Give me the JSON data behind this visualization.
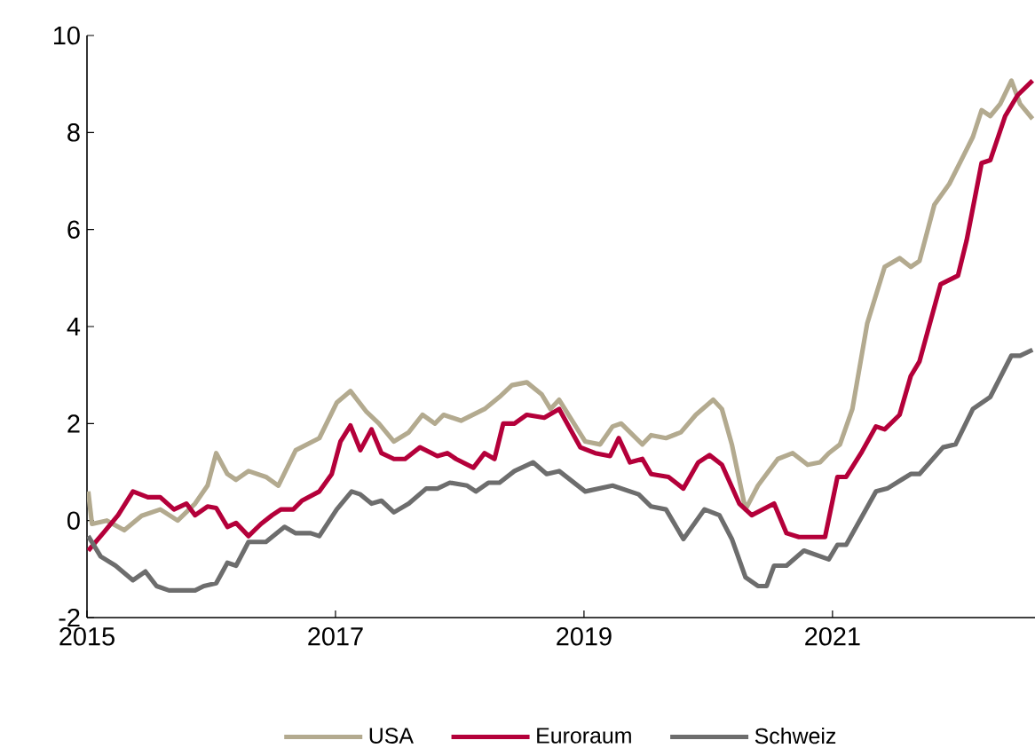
{
  "chart_data": {
    "type": "line",
    "xlim": [
      2015,
      2022.63
    ],
    "xticks": [
      2015,
      2017,
      2019,
      2021
    ],
    "ylim": [
      -2,
      10
    ],
    "yticks": [
      -2,
      0,
      2,
      4,
      6,
      8,
      10
    ],
    "grid": false,
    "legend": "bottom",
    "line_style": "solid",
    "series": [
      {
        "name": "USA",
        "color": "#b3aa8f",
        "x": [
          2015.01,
          2015.04,
          2015.16,
          2015.3,
          2015.44,
          2015.59,
          2015.73,
          2015.87,
          2015.97,
          2016.04,
          2016.13,
          2016.2,
          2016.3,
          2016.44,
          2016.54,
          2016.68,
          2016.87,
          2017.01,
          2017.12,
          2017.25,
          2017.35,
          2017.47,
          2017.59,
          2017.7,
          2017.8,
          2017.87,
          2018.01,
          2018.2,
          2018.32,
          2018.42,
          2018.54,
          2018.66,
          2018.73,
          2018.8,
          2019.01,
          2019.13,
          2019.23,
          2019.3,
          2019.47,
          2019.54,
          2019.66,
          2019.78,
          2019.9,
          2020.04,
          2020.11,
          2020.19,
          2020.3,
          2020.4,
          2020.56,
          2020.68,
          2020.8,
          2020.9,
          2020.97,
          2021.06,
          2021.16,
          2021.28,
          2021.42,
          2021.54,
          2021.63,
          2021.7,
          2021.82,
          2021.94,
          2022.06,
          2022.13,
          2022.2,
          2022.27,
          2022.35,
          2022.44,
          2022.51,
          2022.61
        ],
        "values": [
          0.6,
          -0.07,
          0,
          -0.2,
          0.1,
          0.23,
          0,
          0.35,
          0.72,
          1.39,
          0.96,
          0.84,
          1.02,
          0.9,
          0.72,
          1.45,
          1.7,
          2.43,
          2.67,
          2.24,
          2.0,
          1.63,
          1.82,
          2.18,
          2.0,
          2.18,
          2.06,
          2.3,
          2.55,
          2.79,
          2.85,
          2.6,
          2.3,
          2.49,
          1.63,
          1.57,
          1.94,
          2.0,
          1.57,
          1.76,
          1.7,
          1.82,
          2.18,
          2.49,
          2.3,
          1.57,
          0.23,
          0.72,
          1.27,
          1.39,
          1.15,
          1.2,
          1.39,
          1.57,
          2.3,
          4.07,
          5.23,
          5.41,
          5.23,
          5.35,
          6.51,
          6.94,
          7.55,
          7.91,
          8.46,
          8.34,
          8.59,
          9.07,
          8.59,
          8.28
        ]
      },
      {
        "name": "Euroraum",
        "color": "#b4003a",
        "x": [
          2015.01,
          2015.13,
          2015.25,
          2015.37,
          2015.49,
          2015.59,
          2015.7,
          2015.8,
          2015.87,
          2015.97,
          2016.04,
          2016.13,
          2016.2,
          2016.3,
          2016.4,
          2016.49,
          2016.56,
          2016.66,
          2016.73,
          2016.87,
          2016.97,
          2017.04,
          2017.12,
          2017.2,
          2017.29,
          2017.37,
          2017.47,
          2017.56,
          2017.68,
          2017.82,
          2017.9,
          2017.97,
          2018.11,
          2018.2,
          2018.28,
          2018.35,
          2018.44,
          2018.54,
          2018.68,
          2018.8,
          2018.97,
          2019.09,
          2019.21,
          2019.28,
          2019.37,
          2019.47,
          2019.54,
          2019.68,
          2019.8,
          2019.92,
          2020.01,
          2020.11,
          2020.25,
          2020.35,
          2020.53,
          2020.63,
          2020.73,
          2020.94,
          2021.04,
          2021.11,
          2021.23,
          2021.35,
          2021.42,
          2021.54,
          2021.63,
          2021.7,
          2021.87,
          2022.01,
          2022.08,
          2022.2,
          2022.27,
          2022.39,
          2022.49,
          2022.61
        ],
        "values": [
          -0.62,
          -0.26,
          0.11,
          0.6,
          0.48,
          0.48,
          0.23,
          0.35,
          0.11,
          0.29,
          0.26,
          -0.13,
          -0.05,
          -0.32,
          -0.07,
          0.11,
          0.23,
          0.23,
          0.41,
          0.6,
          0.96,
          1.63,
          1.96,
          1.45,
          1.88,
          1.39,
          1.27,
          1.27,
          1.51,
          1.33,
          1.39,
          1.27,
          1.09,
          1.39,
          1.27,
          2.0,
          2.0,
          2.18,
          2.12,
          2.3,
          1.51,
          1.39,
          1.33,
          1.7,
          1.2,
          1.27,
          0.96,
          0.9,
          0.66,
          1.2,
          1.35,
          1.15,
          0.35,
          0.11,
          0.35,
          -0.26,
          -0.34,
          -0.34,
          0.9,
          0.9,
          1.39,
          1.94,
          1.88,
          2.18,
          2.98,
          3.28,
          4.87,
          5.05,
          5.78,
          7.37,
          7.43,
          8.34,
          8.77,
          9.07
        ]
      },
      {
        "name": "Schweiz",
        "color": "#6d6d6d",
        "x": [
          2015.01,
          2015.11,
          2015.23,
          2015.37,
          2015.47,
          2015.56,
          2015.66,
          2015.87,
          2015.94,
          2016.04,
          2016.13,
          2016.2,
          2016.3,
          2016.44,
          2016.59,
          2016.68,
          2016.8,
          2016.87,
          2017.01,
          2017.13,
          2017.2,
          2017.29,
          2017.37,
          2017.47,
          2017.59,
          2017.73,
          2017.82,
          2017.92,
          2018.06,
          2018.13,
          2018.23,
          2018.32,
          2018.44,
          2018.59,
          2018.7,
          2018.8,
          2019.01,
          2019.23,
          2019.44,
          2019.54,
          2019.66,
          2019.8,
          2019.97,
          2020.09,
          2020.19,
          2020.3,
          2020.4,
          2020.47,
          2020.53,
          2020.63,
          2020.77,
          2020.97,
          2021.04,
          2021.11,
          2021.35,
          2021.44,
          2021.63,
          2021.7,
          2021.89,
          2021.99,
          2022.13,
          2022.27,
          2022.44,
          2022.51,
          2022.61
        ],
        "values": [
          -0.32,
          -0.74,
          -0.93,
          -1.23,
          -1.05,
          -1.35,
          -1.44,
          -1.44,
          -1.35,
          -1.29,
          -0.87,
          -0.93,
          -0.44,
          -0.44,
          -0.13,
          -0.26,
          -0.26,
          -0.32,
          0.23,
          0.6,
          0.54,
          0.35,
          0.41,
          0.17,
          0.35,
          0.66,
          0.66,
          0.78,
          0.72,
          0.6,
          0.78,
          0.78,
          1.02,
          1.2,
          0.96,
          1.02,
          0.6,
          0.72,
          0.54,
          0.29,
          0.23,
          -0.38,
          0.23,
          0.11,
          -0.38,
          -1.17,
          -1.35,
          -1.35,
          -0.93,
          -0.93,
          -0.62,
          -0.8,
          -0.5,
          -0.5,
          0.6,
          0.66,
          0.96,
          0.96,
          1.51,
          1.57,
          2.3,
          2.55,
          3.4,
          3.4,
          3.52
        ]
      }
    ]
  }
}
